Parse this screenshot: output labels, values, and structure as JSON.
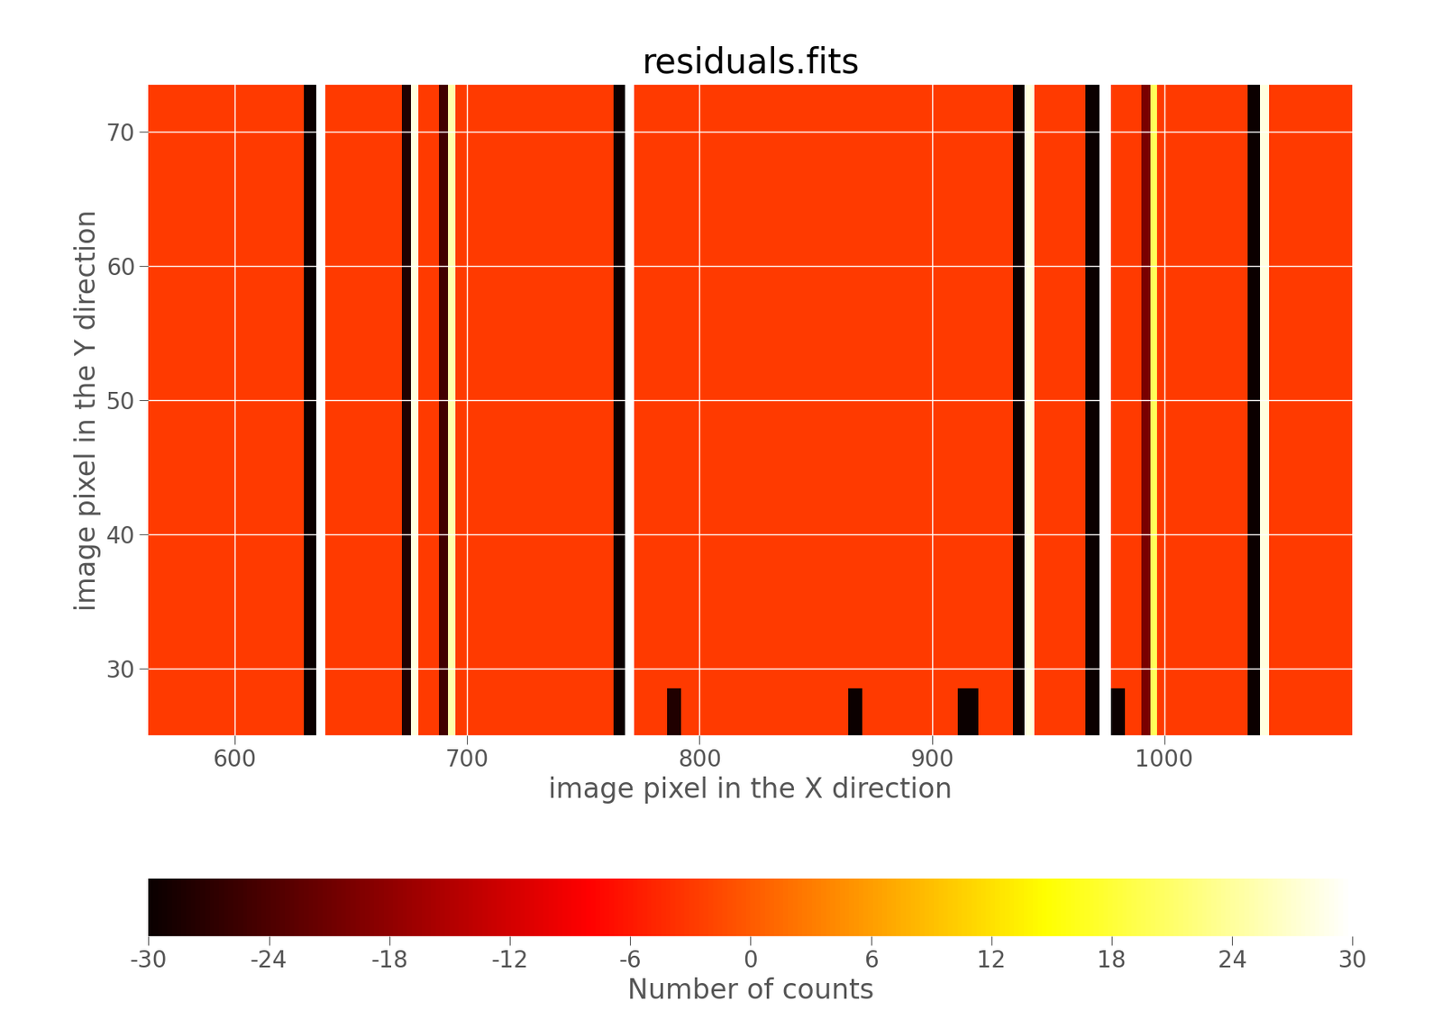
{
  "chart_data": {
    "type": "heatmap",
    "title": "residuals.fits",
    "x_label": "image pixel in the X direction",
    "y_label": "image pixel in the Y direction",
    "x_edges": [
      563,
      630,
      635,
      639,
      672,
      676,
      679,
      688,
      692,
      695,
      763,
      768,
      772,
      786,
      792,
      864,
      870,
      911,
      920,
      935,
      940,
      944,
      966,
      972,
      977,
      983,
      990,
      994,
      997,
      1036,
      1041,
      1045,
      1081
    ],
    "y_edges": [
      25,
      28.5,
      73.5
    ],
    "cells": [
      [
        -3,
        -30,
        30,
        -3,
        -28,
        28,
        -3,
        -25,
        25,
        -3,
        -30,
        30,
        -3,
        -28,
        -3,
        -30,
        -3,
        -30,
        -3,
        -30,
        28,
        -3,
        -30,
        30,
        -30,
        -3,
        -20,
        20,
        -3,
        -30,
        28,
        -3
      ],
      [
        -3,
        -30,
        30,
        -3,
        -28,
        28,
        -3,
        -25,
        25,
        -3,
        -30,
        30,
        -3,
        -3,
        -3,
        -3,
        -3,
        -3,
        -3,
        -30,
        28,
        -3,
        -30,
        30,
        -3,
        -3,
        -20,
        20,
        -3,
        -30,
        28,
        -3
      ]
    ],
    "xlim": [
      563,
      1081
    ],
    "ylim": [
      25,
      73.5
    ],
    "xticks": [
      600,
      700,
      800,
      900,
      1000
    ],
    "yticks": [
      30,
      40,
      50,
      60,
      70
    ],
    "grid": true,
    "colorbar_range": [
      -30,
      30
    ],
    "colorbar_ticks": [
      -30,
      -24,
      -18,
      -12,
      -6,
      0,
      6,
      12,
      18,
      24,
      30
    ],
    "colorbar_label": "Number of counts"
  }
}
